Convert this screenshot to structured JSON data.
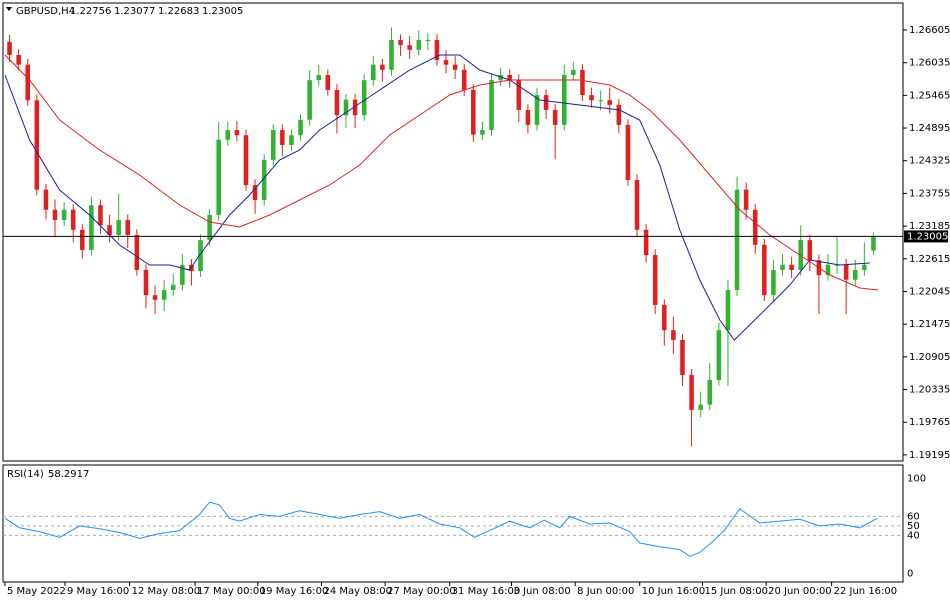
{
  "chart_data": {
    "type": "candlestick",
    "title": "GBPUSD,H4",
    "header_values": [
      1.22756,
      1.23077,
      1.22683,
      1.23005
    ],
    "up_color": "#32b232",
    "down_color": "#e0201e",
    "xlim": [
      0,
      96
    ],
    "ylim": [
      1.19123,
      1.27041
    ],
    "yticks": [
      1.19195,
      1.19765,
      1.20335,
      1.20905,
      1.21475,
      1.22045,
      1.22615,
      1.23185,
      1.23755,
      1.24325,
      1.24895,
      1.25465,
      1.26035,
      1.26605
    ],
    "xticks": [
      {
        "value": 0,
        "label": "5 May 2022"
      },
      {
        "value": 6.6,
        "label": "9 May 16:00"
      },
      {
        "value": 13.7,
        "label": "12 May 08:00"
      },
      {
        "value": 20.9,
        "label": "17 May 00:00"
      },
      {
        "value": 27.8,
        "label": "19 May 16:00"
      },
      {
        "value": 34.8,
        "label": "24 May 08:00"
      },
      {
        "value": 41.8,
        "label": "27 May 00:00"
      },
      {
        "value": 48.9,
        "label": "31 May 16:00"
      },
      {
        "value": 55.7,
        "label": "3 Jun 08:00"
      },
      {
        "value": 62.7,
        "label": "8 Jun 00:00"
      },
      {
        "value": 69.8,
        "label": "10 Jun 16:00"
      },
      {
        "value": 76.7,
        "label": "15 Jun 08:00"
      },
      {
        "value": 83.7,
        "label": "20 Jun 00:00"
      },
      {
        "value": 90.9,
        "label": "22 Jun 16:00"
      }
    ],
    "open": [
      1.264,
      1.2617,
      1.26,
      1.2538,
      1.2382,
      1.2347,
      1.2329,
      1.2347,
      1.2312,
      1.2277,
      1.2355,
      1.232,
      1.2303,
      1.2329,
      1.2303,
      1.2242,
      1.2198,
      1.219,
      1.2207,
      1.2216,
      1.2251,
      1.224,
      1.2294,
      1.2338,
      1.2469,
      1.2486,
      1.2477,
      1.239,
      1.2364,
      1.2434,
      1.2486,
      1.246,
      1.2477,
      1.2504,
      1.2573,
      1.2582,
      1.2556,
      1.2512,
      1.2539,
      1.2512,
      1.2573,
      1.26,
      1.2591,
      1.2643,
      1.2634,
      1.2626,
      1.2643,
      1.2643,
      1.2608,
      1.26,
      1.2591,
      1.2556,
      1.2478,
      1.2486,
      1.2573,
      1.2582,
      1.2573,
      1.2521,
      1.2495,
      1.2547,
      1.2521,
      1.2495,
      1.2582,
      1.2591,
      1.2547,
      1.2538,
      1.2538,
      1.253,
      1.2495,
      1.2399,
      1.2312,
      1.2268,
      1.2181,
      1.2137,
      1.212,
      1.2059,
      1.1998,
      1.2007,
      1.205,
      1.2137,
      1.2207,
      1.2382,
      1.2347,
      1.2286,
      1.2198,
      1.2242,
      1.2251,
      1.2242,
      1.2294,
      1.2259,
      1.2233,
      1.2251,
      1.2251,
      1.2225,
      1.2242,
      1.22756
    ],
    "high": [
      1.2652,
      1.2627,
      1.261,
      1.2548,
      1.2392,
      1.2365,
      1.236,
      1.2357,
      1.2322,
      1.237,
      1.2365,
      1.2338,
      1.2375,
      1.2339,
      1.2313,
      1.2252,
      1.2215,
      1.2225,
      1.2235,
      1.227,
      1.2261,
      1.2304,
      1.2348,
      1.25,
      1.25,
      1.2502,
      1.2487,
      1.24,
      1.2444,
      1.2496,
      1.2496,
      1.2487,
      1.2514,
      1.259,
      1.26,
      1.2592,
      1.2566,
      1.2549,
      1.2549,
      1.2583,
      1.2615,
      1.261,
      1.2665,
      1.2653,
      1.265,
      1.266,
      1.2655,
      1.2653,
      1.2625,
      1.2615,
      1.2601,
      1.2566,
      1.25,
      1.2583,
      1.2595,
      1.2592,
      1.2583,
      1.2531,
      1.256,
      1.2557,
      1.2531,
      1.26,
      1.2605,
      1.2601,
      1.256,
      1.2555,
      1.256,
      1.254,
      1.2505,
      1.2409,
      1.2322,
      1.2278,
      1.2191,
      1.216,
      1.213,
      1.2069,
      1.203,
      1.208,
      1.215,
      1.2225,
      1.2405,
      1.2395,
      1.2357,
      1.2296,
      1.226,
      1.227,
      1.2265,
      1.232,
      1.2304,
      1.2269,
      1.227,
      1.23,
      1.2261,
      1.226,
      1.229,
      1.23077
    ],
    "low": [
      1.2605,
      1.259,
      1.2528,
      1.2372,
      1.233,
      1.23,
      1.2319,
      1.229,
      1.2262,
      1.2267,
      1.2305,
      1.229,
      1.2293,
      1.228,
      1.2232,
      1.2175,
      1.2165,
      1.217,
      1.2197,
      1.2206,
      1.2215,
      1.223,
      1.2284,
      1.2328,
      1.2459,
      1.2467,
      1.238,
      1.234,
      1.2354,
      1.2424,
      1.244,
      1.245,
      1.2467,
      1.2494,
      1.2563,
      1.2546,
      1.248,
      1.249,
      1.249,
      1.2502,
      1.2563,
      1.257,
      1.2581,
      1.2615,
      1.261,
      1.2616,
      1.2625,
      1.2598,
      1.2585,
      1.2575,
      1.2546,
      1.2465,
      1.2468,
      1.2476,
      1.2563,
      1.256,
      1.25,
      1.248,
      1.2485,
      1.2505,
      1.2435,
      1.2485,
      1.2572,
      1.2537,
      1.2525,
      1.252,
      1.2515,
      1.248,
      1.2389,
      1.23,
      1.2255,
      1.2165,
      1.211,
      1.2095,
      1.204,
      1.1934,
      1.1985,
      1.1997,
      1.204,
      1.204,
      1.2197,
      1.233,
      1.227,
      1.2188,
      1.2188,
      1.2232,
      1.2228,
      1.2232,
      1.224,
      1.2165,
      1.2223,
      1.2235,
      1.2165,
      1.2215,
      1.2232,
      1.22683
    ],
    "close": [
      1.2617,
      1.26,
      1.2538,
      1.2382,
      1.2347,
      1.2329,
      1.2347,
      1.2312,
      1.2277,
      1.2355,
      1.232,
      1.2303,
      1.2329,
      1.2303,
      1.2242,
      1.2198,
      1.219,
      1.2207,
      1.2216,
      1.2251,
      1.224,
      1.2294,
      1.2338,
      1.2469,
      1.2486,
      1.2477,
      1.239,
      1.2364,
      1.2434,
      1.2486,
      1.246,
      1.2477,
      1.2504,
      1.2573,
      1.2582,
      1.2556,
      1.2512,
      1.2539,
      1.2512,
      1.2573,
      1.26,
      1.2591,
      1.2643,
      1.2634,
      1.2626,
      1.2643,
      1.2643,
      1.2608,
      1.26,
      1.2591,
      1.2556,
      1.2478,
      1.2486,
      1.2573,
      1.2582,
      1.2573,
      1.2521,
      1.2495,
      1.2547,
      1.2521,
      1.2495,
      1.2582,
      1.2591,
      1.2547,
      1.2538,
      1.2538,
      1.253,
      1.2495,
      1.2399,
      1.2312,
      1.2268,
      1.2181,
      1.2137,
      1.212,
      1.2059,
      1.1998,
      1.2007,
      1.205,
      1.2137,
      1.2207,
      1.2382,
      1.2347,
      1.2286,
      1.2198,
      1.2242,
      1.2251,
      1.2242,
      1.2294,
      1.2259,
      1.2233,
      1.2251,
      1.2251,
      1.2225,
      1.2242,
      1.2251,
      1.23005
    ],
    "overlays": [
      {
        "color": "#1c1c9c",
        "x": [
          0,
          2.7,
          6.0,
          9.3,
          12.6,
          15.9,
          18.1,
          20.3,
          21.4,
          24.7,
          26.9,
          30.2,
          32.4,
          34.6,
          37.9,
          41.2,
          44.5,
          47.8,
          50.0,
          52.2,
          55.5,
          58.8,
          63.2,
          67.6,
          69.8,
          72.0,
          74.2,
          76.4,
          78.6,
          80.2,
          83.0,
          86.3,
          88.5,
          91.8,
          95.1
        ],
        "values": [
          1.2582,
          1.24687,
          1.23815,
          1.23379,
          1.22855,
          1.22507,
          1.22507,
          1.22419,
          1.22681,
          1.23379,
          1.23728,
          1.24338,
          1.24512,
          1.24861,
          1.2521,
          1.25559,
          1.25907,
          1.26169,
          1.26169,
          1.25907,
          1.25733,
          1.25384,
          1.25297,
          1.2521,
          1.25035,
          1.24251,
          1.23117,
          1.22245,
          1.21547,
          1.21199,
          1.21635,
          1.22158,
          1.22594,
          1.22507,
          1.22542
        ]
      },
      {
        "color": "#e02020",
        "x": [
          0,
          2.7,
          6.0,
          10.4,
          14.8,
          19.2,
          22.5,
          25.8,
          29.1,
          32.4,
          35.7,
          39.0,
          42.3,
          45.6,
          48.9,
          52.2,
          55.5,
          58.8,
          63.2,
          66.5,
          68.7,
          70.9,
          74.2,
          77.5,
          80.8,
          84.1,
          87.4,
          90.7,
          94.0,
          96.0
        ],
        "values": [
          1.26169,
          1.25733,
          1.25035,
          1.24512,
          1.24076,
          1.23553,
          1.23256,
          1.23169,
          1.23379,
          1.2364,
          1.23902,
          1.24251,
          1.24774,
          1.25123,
          1.25471,
          1.25646,
          1.25733,
          1.25733,
          1.25733,
          1.25646,
          1.25471,
          1.2521,
          1.24687,
          1.24076,
          1.23466,
          1.2303,
          1.22681,
          1.22332,
          1.22106,
          1.22071
        ]
      }
    ],
    "rsi": {
      "title": "RSI(14)",
      "value": 58.2917,
      "color": "#1e90ff",
      "ylim": [
        -8,
        112
      ],
      "yticks": [
        100,
        60,
        50,
        40,
        0
      ],
      "x": [
        0,
        1.6,
        3.8,
        6.0,
        8.2,
        10.4,
        12.6,
        14.8,
        17.0,
        19.2,
        21.4,
        22.5,
        23.6,
        24.7,
        25.8,
        28.0,
        30.2,
        32.4,
        34.6,
        36.8,
        39.0,
        41.2,
        43.4,
        45.6,
        47.8,
        50.0,
        51.6,
        53.3,
        55.5,
        57.7,
        59.3,
        61.0,
        62.1,
        64.3,
        66.5,
        68.7,
        69.8,
        72.0,
        74.2,
        75.3,
        76.4,
        78.0,
        79.1,
        80.8,
        83.0,
        85.2,
        87.4,
        89.6,
        91.8,
        94.0,
        95.9
      ],
      "values": [
        58,
        48,
        44,
        38,
        50,
        47,
        43,
        37,
        42,
        45,
        62,
        75,
        72,
        58,
        55,
        62,
        60,
        66,
        62,
        58,
        62,
        65,
        58,
        62,
        52,
        48,
        38,
        45,
        55,
        48,
        56,
        48,
        60,
        52,
        53,
        44,
        32,
        28,
        25,
        18,
        22,
        35,
        45,
        68,
        53,
        55,
        57,
        50,
        52,
        48,
        58
      ]
    }
  }
}
